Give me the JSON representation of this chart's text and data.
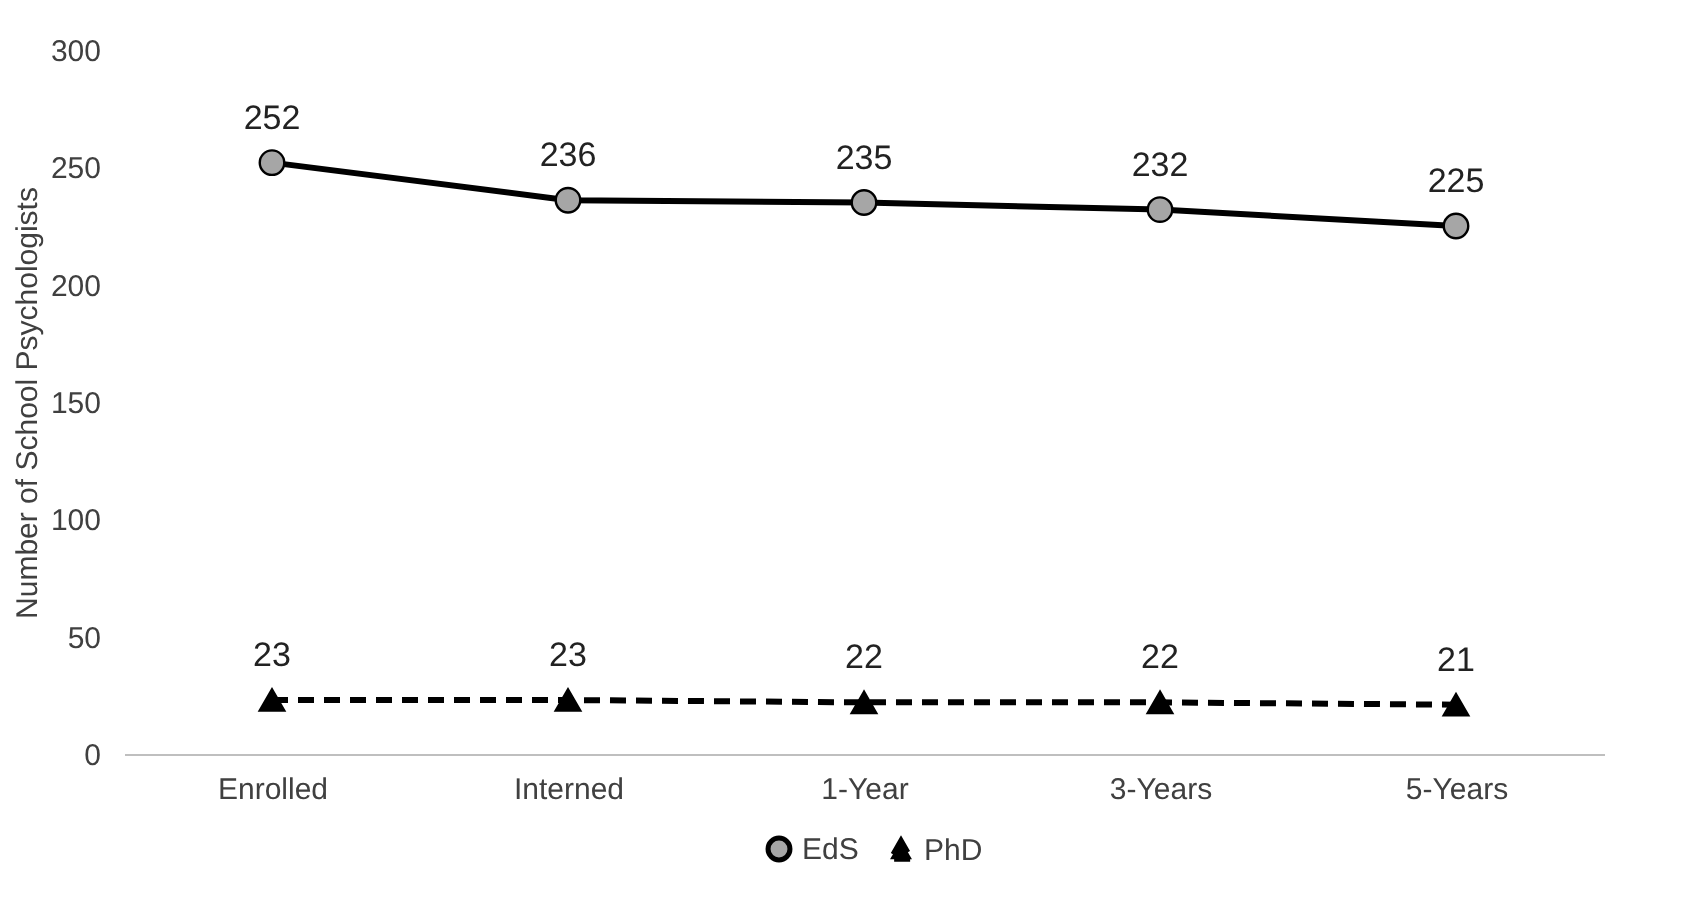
{
  "chart_data": {
    "type": "line",
    "ylabel": "Number of School Psychologists",
    "categories": [
      "Enrolled",
      "Interned",
      "1-Year",
      "3-Years",
      "5-Years"
    ],
    "series": [
      {
        "name": "EdS",
        "color": "#000000",
        "marker": "circle",
        "line_style": "solid",
        "values": [
          252,
          236,
          235,
          232,
          225
        ]
      },
      {
        "name": "PhD",
        "color": "#000000",
        "marker": "triangle",
        "line_style": "dashed",
        "values": [
          23,
          23,
          22,
          22,
          21
        ]
      }
    ],
    "ylim": [
      0,
      300
    ],
    "yticks": [
      0,
      50,
      100,
      150,
      200,
      250,
      300
    ],
    "grid": false,
    "legend": "bottom",
    "data_labels": true
  }
}
